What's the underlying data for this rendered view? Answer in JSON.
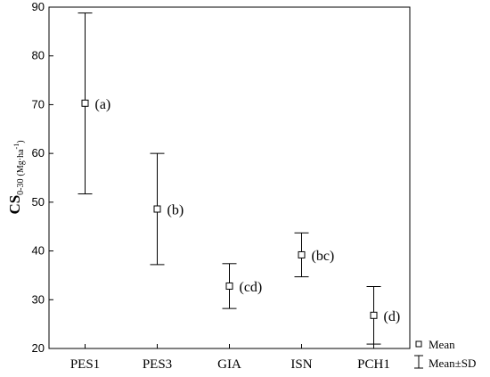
{
  "chart_data": {
    "type": "scatter",
    "ylabel": {
      "main": "CS",
      "subscript": "0-30",
      "unit": "(Mg·ha",
      "unit_sup": "-1",
      "unit_close": ")"
    },
    "ylim": [
      20,
      90
    ],
    "yticks": [
      20,
      30,
      40,
      50,
      60,
      70,
      80,
      90
    ],
    "grid": false,
    "categories": [
      "PES1",
      "PES3",
      "GIA",
      "ISN",
      "PCH1"
    ],
    "mean": [
      70.3,
      48.6,
      32.8,
      39.2,
      26.8
    ],
    "upper": [
      88.8,
      60.0,
      37.4,
      43.7,
      32.7
    ],
    "lower": [
      51.7,
      37.2,
      28.2,
      34.7,
      20.9
    ],
    "group_labels": [
      "(a)",
      "(b)",
      "(cd)",
      "(bc)",
      "(d)"
    ],
    "legend": {
      "position": "bottom-right outside",
      "items": [
        "Mean",
        "Mean±SD"
      ]
    }
  }
}
